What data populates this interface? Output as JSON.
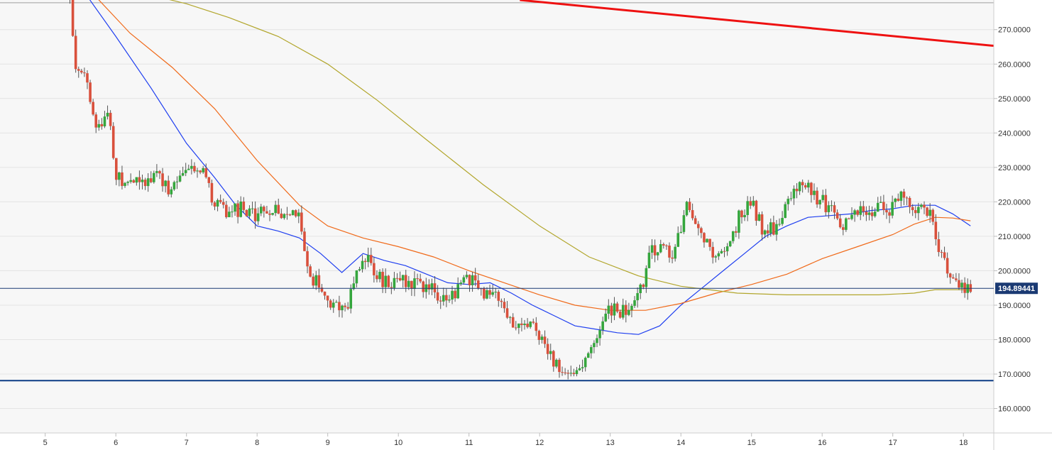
{
  "chart_data": {
    "type": "candlestick",
    "x_ticks": [
      "5",
      "6",
      "7",
      "8",
      "9",
      "10",
      "11",
      "12",
      "13",
      "14",
      "15",
      "16",
      "17",
      "18"
    ],
    "y_ticks": [
      "160.0000",
      "170.0000",
      "180.0000",
      "190.0000",
      "200.0000",
      "210.0000",
      "220.0000",
      "230.0000",
      "240.0000",
      "250.0000",
      "260.0000",
      "270.0000"
    ],
    "ylim": [
      152.9,
      278.6
    ],
    "xlim": [
      4.36,
      18.43
    ],
    "current_price": "194.89441",
    "current_price_value": 194.89,
    "horizontal_levels": [
      {
        "value": 277.8,
        "color": "#9e9e9e"
      },
      {
        "value": 168.1,
        "color": "#0d3d85"
      }
    ],
    "trendline": {
      "color": "#ee1111",
      "points": [
        [
          11.72,
          278.6
        ],
        [
          18.43,
          265.3
        ]
      ]
    },
    "anchors": [
      [
        5.35,
        280.0
      ],
      [
        5.4,
        266.0
      ],
      [
        5.45,
        256.0
      ],
      [
        5.55,
        260.0
      ],
      [
        5.7,
        243.0
      ],
      [
        5.9,
        244.0
      ],
      [
        6.0,
        228.0
      ],
      [
        6.15,
        226.0
      ],
      [
        6.3,
        226.0
      ],
      [
        6.5,
        225.0
      ],
      [
        6.6,
        229.0
      ],
      [
        6.75,
        222.0
      ],
      [
        6.9,
        226.0
      ],
      [
        7.1,
        231.0
      ],
      [
        7.25,
        229.0
      ],
      [
        7.4,
        219.0
      ],
      [
        7.6,
        217.0
      ],
      [
        7.8,
        218.0
      ],
      [
        8.0,
        216.0
      ],
      [
        8.2,
        218.0
      ],
      [
        8.4,
        217.0
      ],
      [
        8.6,
        215.0
      ],
      [
        8.72,
        200.0
      ],
      [
        8.9,
        195.0
      ],
      [
        9.1,
        189.0
      ],
      [
        9.3,
        191.0
      ],
      [
        9.4,
        200.0
      ],
      [
        9.55,
        205.0
      ],
      [
        9.75,
        197.0
      ],
      [
        9.95,
        196.0
      ],
      [
        10.1,
        197.0
      ],
      [
        10.3,
        196.0
      ],
      [
        10.5,
        195.0
      ],
      [
        10.7,
        190.0
      ],
      [
        10.85,
        196.0
      ],
      [
        11.0,
        198.0
      ],
      [
        11.2,
        194.0
      ],
      [
        11.35,
        193.0
      ],
      [
        11.5,
        188.0
      ],
      [
        11.7,
        183.0
      ],
      [
        11.85,
        185.0
      ],
      [
        12.0,
        182.0
      ],
      [
        12.15,
        176.0
      ],
      [
        12.3,
        170.0
      ],
      [
        12.45,
        172.0
      ],
      [
        12.6,
        170.0
      ],
      [
        12.7,
        176.0
      ],
      [
        12.85,
        183.0
      ],
      [
        13.0,
        189.0
      ],
      [
        13.2,
        188.0
      ],
      [
        13.35,
        190.0
      ],
      [
        13.45,
        195.0
      ],
      [
        13.55,
        205.0
      ],
      [
        13.7,
        207.0
      ],
      [
        13.85,
        204.0
      ],
      [
        14.0,
        213.0
      ],
      [
        14.1,
        219.0
      ],
      [
        14.25,
        214.0
      ],
      [
        14.4,
        206.0
      ],
      [
        14.55,
        205.0
      ],
      [
        14.7,
        208.0
      ],
      [
        14.85,
        217.0
      ],
      [
        15.0,
        220.0
      ],
      [
        15.15,
        212.0
      ],
      [
        15.3,
        212.0
      ],
      [
        15.45,
        218.0
      ],
      [
        15.6,
        224.0
      ],
      [
        15.75,
        225.0
      ],
      [
        15.9,
        222.0
      ],
      [
        16.05,
        219.0
      ],
      [
        16.2,
        216.0
      ],
      [
        16.35,
        213.0
      ],
      [
        16.5,
        218.0
      ],
      [
        16.65,
        217.0
      ],
      [
        16.8,
        218.0
      ],
      [
        16.95,
        218.0
      ],
      [
        17.05,
        222.0
      ],
      [
        17.2,
        220.0
      ],
      [
        17.35,
        218.0
      ],
      [
        17.45,
        219.0
      ],
      [
        17.55,
        215.0
      ],
      [
        17.65,
        204.0
      ],
      [
        17.75,
        203.0
      ],
      [
        17.85,
        196.0
      ],
      [
        18.0,
        195.5
      ],
      [
        18.13,
        195.0
      ]
    ],
    "moving_averages": [
      {
        "color": "#1f3ff0",
        "points": [
          [
            5.55,
            281.0
          ],
          [
            6.0,
            268.0
          ],
          [
            6.5,
            253.0
          ],
          [
            7.0,
            237.0
          ],
          [
            7.4,
            227.0
          ],
          [
            7.7,
            219.0
          ],
          [
            8.0,
            213.0
          ],
          [
            8.3,
            211.5
          ],
          [
            8.6,
            209.5
          ],
          [
            8.9,
            205.0
          ],
          [
            9.2,
            199.5
          ],
          [
            9.5,
            205.0
          ],
          [
            9.8,
            203.0
          ],
          [
            10.1,
            201.5
          ],
          [
            10.4,
            199.0
          ],
          [
            10.7,
            196.5
          ],
          [
            11.0,
            196.0
          ],
          [
            11.3,
            196.5
          ],
          [
            11.6,
            193.5
          ],
          [
            11.9,
            190.0
          ],
          [
            12.2,
            187.0
          ],
          [
            12.5,
            184.0
          ],
          [
            12.8,
            183.0
          ],
          [
            13.1,
            182.0
          ],
          [
            13.4,
            181.5
          ],
          [
            13.7,
            184.0
          ],
          [
            14.0,
            190.0
          ],
          [
            14.3,
            195.0
          ],
          [
            14.6,
            200.0
          ],
          [
            14.9,
            205.0
          ],
          [
            15.2,
            210.0
          ],
          [
            15.5,
            213.0
          ],
          [
            15.8,
            215.5
          ],
          [
            16.1,
            216.0
          ],
          [
            16.4,
            216.5
          ],
          [
            16.7,
            217.5
          ],
          [
            17.0,
            218.0
          ],
          [
            17.3,
            219.0
          ],
          [
            17.6,
            219.0
          ],
          [
            17.85,
            216.5
          ],
          [
            18.1,
            213.0
          ]
        ]
      },
      {
        "color": "#f06a1a",
        "points": [
          [
            5.65,
            281.0
          ],
          [
            6.2,
            269.0
          ],
          [
            6.8,
            259.0
          ],
          [
            7.4,
            247.0
          ],
          [
            8.0,
            232.0
          ],
          [
            8.6,
            219.0
          ],
          [
            9.0,
            213.0
          ],
          [
            9.5,
            209.5
          ],
          [
            10.0,
            207.0
          ],
          [
            10.5,
            204.0
          ],
          [
            11.0,
            200.0
          ],
          [
            11.5,
            196.5
          ],
          [
            12.0,
            193.0
          ],
          [
            12.5,
            190.0
          ],
          [
            13.0,
            188.5
          ],
          [
            13.5,
            188.5
          ],
          [
            14.0,
            190.5
          ],
          [
            14.5,
            193.5
          ],
          [
            15.0,
            196.0
          ],
          [
            15.5,
            199.0
          ],
          [
            16.0,
            203.5
          ],
          [
            16.5,
            207.0
          ],
          [
            17.0,
            210.5
          ],
          [
            17.3,
            213.5
          ],
          [
            17.6,
            215.5
          ],
          [
            17.85,
            215.3
          ],
          [
            18.1,
            214.5
          ]
        ]
      },
      {
        "color": "#b2a62c",
        "points": [
          [
            6.3,
            281.0
          ],
          [
            7.0,
            277.5
          ],
          [
            7.6,
            273.5
          ],
          [
            8.3,
            268.0
          ],
          [
            9.0,
            260.0
          ],
          [
            9.7,
            249.5
          ],
          [
            10.4,
            238.0
          ],
          [
            11.2,
            225.0
          ],
          [
            12.0,
            213.0
          ],
          [
            12.7,
            204.0
          ],
          [
            13.4,
            198.5
          ],
          [
            14.0,
            195.5
          ],
          [
            14.8,
            193.5
          ],
          [
            15.5,
            193.0
          ],
          [
            16.2,
            193.0
          ],
          [
            16.8,
            193.0
          ],
          [
            17.3,
            193.5
          ],
          [
            17.6,
            194.5
          ],
          [
            17.85,
            194.5
          ],
          [
            18.1,
            194.5
          ]
        ]
      }
    ]
  }
}
